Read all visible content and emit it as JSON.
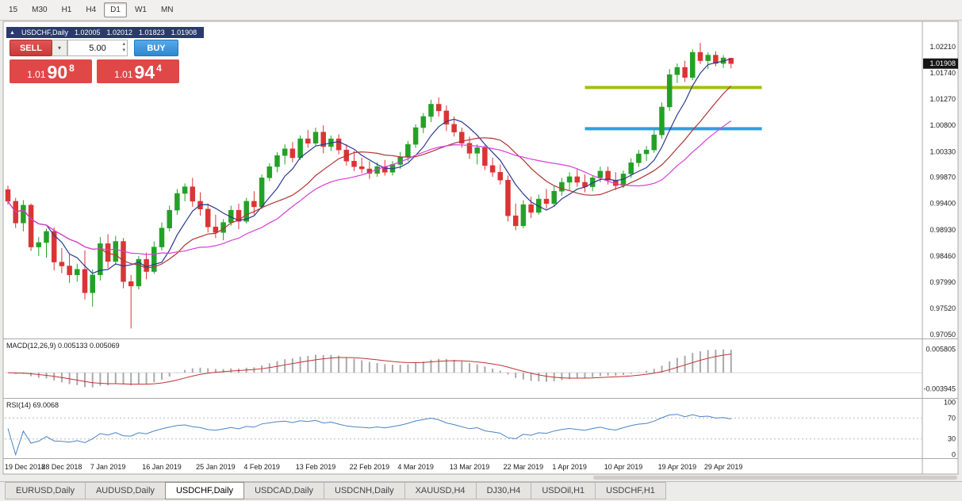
{
  "toolbar": {
    "timeframes": [
      "15",
      "M30",
      "H1",
      "H4",
      "D1",
      "W1",
      "MN"
    ],
    "active_timeframe": "D1"
  },
  "chart_header": {
    "symbol": "USDCHF,Daily",
    "open": "1.02005",
    "high": "1.02012",
    "low": "1.01823",
    "close": "1.01908"
  },
  "trade_panel": {
    "sell_label": "SELL",
    "buy_label": "BUY",
    "volume_value": "5.00",
    "sell_price": {
      "prefix": "1.01",
      "main": "90",
      "sup": "8"
    },
    "buy_price": {
      "prefix": "1.01",
      "main": "94",
      "sup": "4"
    },
    "colors": {
      "sell_button": "#d64545",
      "buy_button": "#3a9fe0",
      "quote_background": "#e04848"
    }
  },
  "price_axis": {
    "labels": [
      "1.02210",
      "1.01740",
      "1.01270",
      "1.00800",
      "1.00330",
      "0.99870",
      "0.99400",
      "0.98930",
      "0.98460",
      "0.97990",
      "0.97520",
      "0.97050"
    ],
    "current_price": "1.01908"
  },
  "indicators": {
    "macd": {
      "label": "MACD(12,26,9) 0.005133 0.005069",
      "axis_labels": [
        "0.005805",
        "-0.003945"
      ]
    },
    "rsi": {
      "label": "RSI(14) 69.0068",
      "axis_labels": [
        "100",
        "70",
        "30",
        "0"
      ],
      "levels": [
        70,
        30
      ]
    }
  },
  "date_axis": {
    "labels": [
      {
        "text": "19 Dec 2018",
        "index": 0
      },
      {
        "text": "28 Dec 2018",
        "index": 7
      },
      {
        "text": "7 Jan 2019",
        "index": 13
      },
      {
        "text": "16 Jan 2019",
        "index": 20
      },
      {
        "text": "25 Jan 2019",
        "index": 27
      },
      {
        "text": "4 Feb 2019",
        "index": 33
      },
      {
        "text": "13 Feb 2019",
        "index": 40
      },
      {
        "text": "22 Feb 2019",
        "index": 47
      },
      {
        "text": "4 Mar 2019",
        "index": 53
      },
      {
        "text": "13 Mar 2019",
        "index": 60
      },
      {
        "text": "22 Mar 2019",
        "index": 67
      },
      {
        "text": "1 Apr 2019",
        "index": 73
      },
      {
        "text": "10 Apr 2019",
        "index": 80
      },
      {
        "text": "19 Apr 2019",
        "index": 87
      },
      {
        "text": "29 Apr 2019",
        "index": 93
      }
    ]
  },
  "tabs": {
    "items": [
      "EURUSD,Daily",
      "AUDUSD,Daily",
      "USDCHF,Daily",
      "USDCAD,Daily",
      "USDCNH,Daily",
      "XAUUSD,H4",
      "DJ30,H4",
      "USDOil,H1",
      "USDCHF,H1"
    ],
    "active_index": 2
  },
  "chart_data": {
    "type": "candlestick",
    "symbol": "USDCHF",
    "timeframe": "Daily",
    "ylim": [
      0.9698,
      1.0265
    ],
    "candles": [
      [
        0.9965,
        0.9972,
        0.9938,
        0.9944
      ],
      [
        0.9944,
        0.995,
        0.9896,
        0.9905
      ],
      [
        0.9905,
        0.9946,
        0.989,
        0.9937
      ],
      [
        0.9937,
        0.994,
        0.9855,
        0.9862
      ],
      [
        0.9862,
        0.988,
        0.9846,
        0.987
      ],
      [
        0.987,
        0.9895,
        0.9843,
        0.989
      ],
      [
        0.989,
        0.9897,
        0.982,
        0.9835
      ],
      [
        0.9835,
        0.986,
        0.9815,
        0.9828
      ],
      [
        0.9828,
        0.985,
        0.9798,
        0.9812
      ],
      [
        0.9812,
        0.9832,
        0.98,
        0.9822
      ],
      [
        0.9822,
        0.9856,
        0.9768,
        0.978
      ],
      [
        0.978,
        0.9822,
        0.9755,
        0.9812
      ],
      [
        0.9812,
        0.988,
        0.9802,
        0.9868
      ],
      [
        0.9868,
        0.9885,
        0.9824,
        0.9836
      ],
      [
        0.9836,
        0.9882,
        0.983,
        0.9872
      ],
      [
        0.9872,
        0.9878,
        0.9788,
        0.98
      ],
      [
        0.98,
        0.9812,
        0.9716,
        0.9792
      ],
      [
        0.9792,
        0.9846,
        0.9786,
        0.984
      ],
      [
        0.984,
        0.9852,
        0.9804,
        0.9818
      ],
      [
        0.9818,
        0.9872,
        0.9814,
        0.9862
      ],
      [
        0.9862,
        0.9906,
        0.9856,
        0.9896
      ],
      [
        0.9896,
        0.9936,
        0.989,
        0.9928
      ],
      [
        0.9928,
        0.9966,
        0.992,
        0.9958
      ],
      [
        0.9958,
        0.9976,
        0.9944,
        0.997
      ],
      [
        0.997,
        0.9986,
        0.9934,
        0.9944
      ],
      [
        0.9944,
        0.996,
        0.9918,
        0.993
      ],
      [
        0.993,
        0.994,
        0.9888,
        0.9898
      ],
      [
        0.9898,
        0.992,
        0.9878,
        0.9888
      ],
      [
        0.9888,
        0.9912,
        0.9874,
        0.9906
      ],
      [
        0.9906,
        0.9936,
        0.99,
        0.9928
      ],
      [
        0.9928,
        0.994,
        0.9894,
        0.9908
      ],
      [
        0.9908,
        0.995,
        0.9904,
        0.9944
      ],
      [
        0.9944,
        0.9962,
        0.992,
        0.9934
      ],
      [
        0.9934,
        0.9992,
        0.993,
        0.9986
      ],
      [
        0.9986,
        1.0012,
        0.998,
        1.0006
      ],
      [
        1.0006,
        1.0032,
        0.9996,
        1.0026
      ],
      [
        1.0026,
        1.0046,
        1.001,
        1.0038
      ],
      [
        1.0038,
        1.005,
        1.0014,
        1.0022
      ],
      [
        1.0022,
        1.0062,
        1.0018,
        1.0056
      ],
      [
        1.0056,
        1.0072,
        1.004,
        1.0048
      ],
      [
        1.0048,
        1.0076,
        1.0044,
        1.0068
      ],
      [
        1.0068,
        1.008,
        1.003,
        1.0042
      ],
      [
        1.0042,
        1.0062,
        1.0034,
        1.0056
      ],
      [
        1.0056,
        1.0064,
        1.0028,
        1.0036
      ],
      [
        1.0036,
        1.0046,
        1.0008,
        1.0016
      ],
      [
        1.0016,
        1.0034,
        0.9998,
        1.0006
      ],
      [
        1.0006,
        1.0022,
        0.9994,
        1.0002
      ],
      [
        1.0002,
        1.0016,
        0.9984,
        0.9994
      ],
      [
        0.9994,
        1.0014,
        0.9988,
        1.0006
      ],
      [
        1.0006,
        1.0018,
        0.999,
        0.9996
      ],
      [
        0.9996,
        1.0016,
        0.999,
        1.001
      ],
      [
        1.001,
        1.0032,
        1.0002,
        1.0024
      ],
      [
        1.0024,
        1.0052,
        1.0016,
        1.0046
      ],
      [
        1.0046,
        1.0082,
        1.004,
        1.0076
      ],
      [
        1.0076,
        1.0102,
        1.0066,
        1.0096
      ],
      [
        1.0096,
        1.0126,
        1.0086,
        1.0118
      ],
      [
        1.0118,
        1.013,
        1.0096,
        1.0106
      ],
      [
        1.0106,
        1.0116,
        1.007,
        1.0082
      ],
      [
        1.0082,
        1.0096,
        1.006,
        1.0068
      ],
      [
        1.0068,
        1.0076,
        1.004,
        1.0048
      ],
      [
        1.0048,
        1.006,
        1.002,
        1.003
      ],
      [
        1.003,
        1.0046,
        1.001,
        1.004
      ],
      [
        1.004,
        1.0044,
        1.0,
        1.0008
      ],
      [
        1.0008,
        1.0022,
        0.9988,
        0.9996
      ],
      [
        0.9996,
        1.001,
        0.9974,
        0.9982
      ],
      [
        0.9982,
        0.999,
        0.9908,
        0.9918
      ],
      [
        0.9918,
        0.994,
        0.9892,
        0.99
      ],
      [
        0.99,
        0.9946,
        0.9896,
        0.9938
      ],
      [
        0.9938,
        0.9952,
        0.9914,
        0.9924
      ],
      [
        0.9924,
        0.9956,
        0.992,
        0.9948
      ],
      [
        0.9948,
        0.9966,
        0.993,
        0.994
      ],
      [
        0.994,
        0.9972,
        0.9934,
        0.9962
      ],
      [
        0.9962,
        0.9986,
        0.9954,
        0.9978
      ],
      [
        0.9978,
        0.9996,
        0.9964,
        0.9988
      ],
      [
        0.9988,
        1.0002,
        0.997,
        0.9978
      ],
      [
        0.9978,
        0.9992,
        0.996,
        0.997
      ],
      [
        0.997,
        0.999,
        0.9962,
        0.9986
      ],
      [
        0.9986,
        1.0006,
        0.9978,
        0.9998
      ],
      [
        0.9998,
        1.0006,
        0.9974,
        0.9982
      ],
      [
        0.9982,
        0.9996,
        0.9964,
        0.9972
      ],
      [
        0.9972,
        0.9999,
        0.9968,
        0.9993
      ],
      [
        0.9993,
        1.0021,
        0.9986,
        1.0013
      ],
      [
        1.0013,
        1.0036,
        1.0006,
        1.0029
      ],
      [
        1.0029,
        1.0043,
        1.0016,
        1.0036
      ],
      [
        1.0036,
        1.0071,
        1.0031,
        1.0063
      ],
      [
        1.0063,
        1.0121,
        1.0056,
        1.0113
      ],
      [
        1.0113,
        1.0181,
        1.0106,
        1.0171
      ],
      [
        1.0171,
        1.0191,
        1.0156,
        1.0184
      ],
      [
        1.0184,
        1.0196,
        1.0158,
        1.0166
      ],
      [
        1.0166,
        1.0216,
        1.0161,
        1.0211
      ],
      [
        1.0211,
        1.0228,
        1.019,
        1.0196
      ],
      [
        1.0196,
        1.0211,
        1.0181,
        1.0206
      ],
      [
        1.0206,
        1.0213,
        1.0186,
        1.0191
      ],
      [
        1.0191,
        1.0206,
        1.0183,
        1.0201
      ],
      [
        1.02005,
        1.02012,
        1.01823,
        1.01908
      ]
    ],
    "moving_averages": [
      {
        "period": 6,
        "color": "#2b3990"
      },
      {
        "period": 13,
        "color": "#b03434"
      },
      {
        "period": 21,
        "color": "#d83fd8"
      }
    ],
    "hlines": [
      {
        "price": 1.0148,
        "color": "#a2c014",
        "from_index": 75,
        "to_index": 98,
        "width": 4
      },
      {
        "price": 1.0074,
        "color": "#2da0e0",
        "from_index": 75,
        "to_index": 98,
        "width": 4
      }
    ],
    "colors": {
      "up": "#23a127",
      "down": "#d93535",
      "macd_histogram": "#aaaaaa",
      "macd_signal": "#c03333",
      "rsi_line": "#4a84c4",
      "axis_text": "#1a1a1a",
      "panel_border": "#a9a9a9",
      "price_tag_bg": "#151515"
    },
    "macd": {
      "fast": 12,
      "slow": 26,
      "signal": 9,
      "ylim": [
        -0.006,
        0.008
      ]
    },
    "rsi": {
      "period": 14,
      "ylim": [
        0,
        100
      ]
    }
  }
}
